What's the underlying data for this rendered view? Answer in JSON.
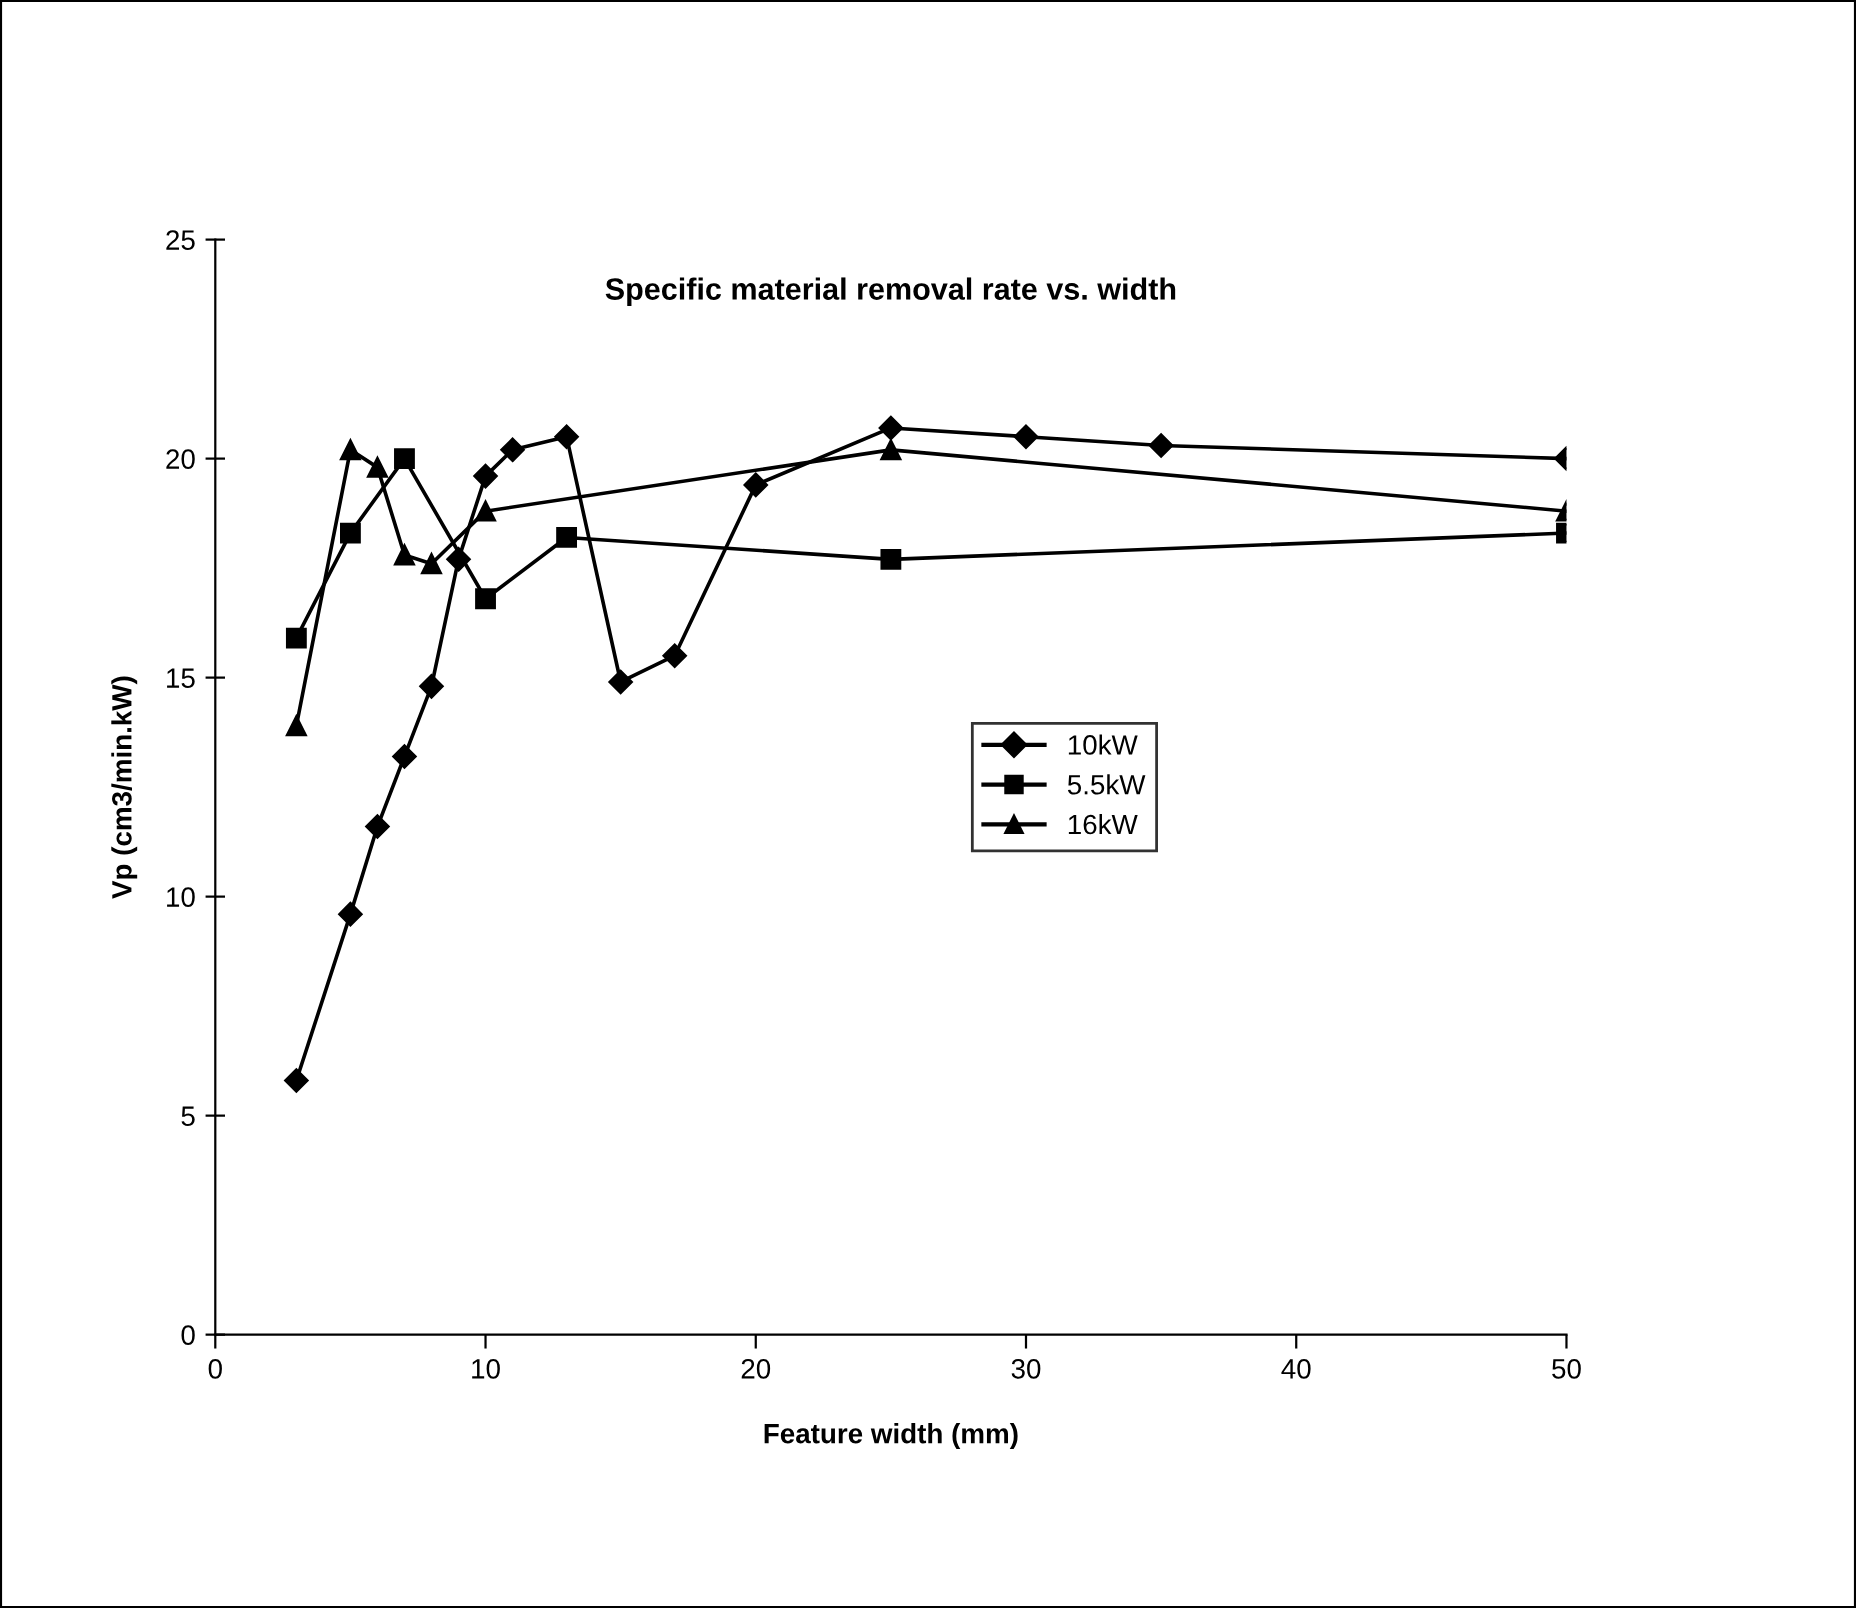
{
  "chart_data": {
    "type": "line",
    "title": "Specific material removal rate vs. width",
    "xlabel": "Feature width (mm)",
    "ylabel": "Vp (cm3/min.kW)",
    "series": [
      {
        "name": "10kW",
        "color": "#000000",
        "marker": "diamond",
        "x": [
          3,
          5,
          6,
          7,
          8,
          9,
          10,
          11,
          13,
          15,
          17,
          20,
          25,
          30,
          35,
          50
        ],
        "values": [
          5.8,
          9.6,
          11.6,
          13.2,
          14.8,
          17.7,
          19.6,
          20.2,
          20.5,
          14.9,
          15.5,
          19.4,
          20.7,
          20.5,
          20.3,
          20.0
        ]
      },
      {
        "name": "5.5kW",
        "color": "#000000",
        "marker": "square",
        "x": [
          3,
          5,
          7,
          10,
          13,
          25,
          50
        ],
        "values": [
          15.9,
          18.3,
          20.0,
          16.8,
          18.2,
          17.7,
          18.3
        ]
      },
      {
        "name": "16kW",
        "color": "#000000",
        "marker": "triangle",
        "x": [
          3,
          5,
          6,
          7,
          8,
          10,
          25,
          50
        ],
        "values": [
          13.9,
          20.2,
          19.8,
          17.8,
          17.6,
          18.8,
          20.2,
          18.8
        ]
      }
    ],
    "xlim": [
      0,
      50
    ],
    "xticks": [
      0,
      10,
      20,
      30,
      40,
      50
    ],
    "ylim": [
      0,
      25
    ],
    "yticks": [
      0,
      5,
      10,
      15,
      20,
      25
    ],
    "grid": false,
    "legend": "right",
    "line_style": "solid"
  }
}
